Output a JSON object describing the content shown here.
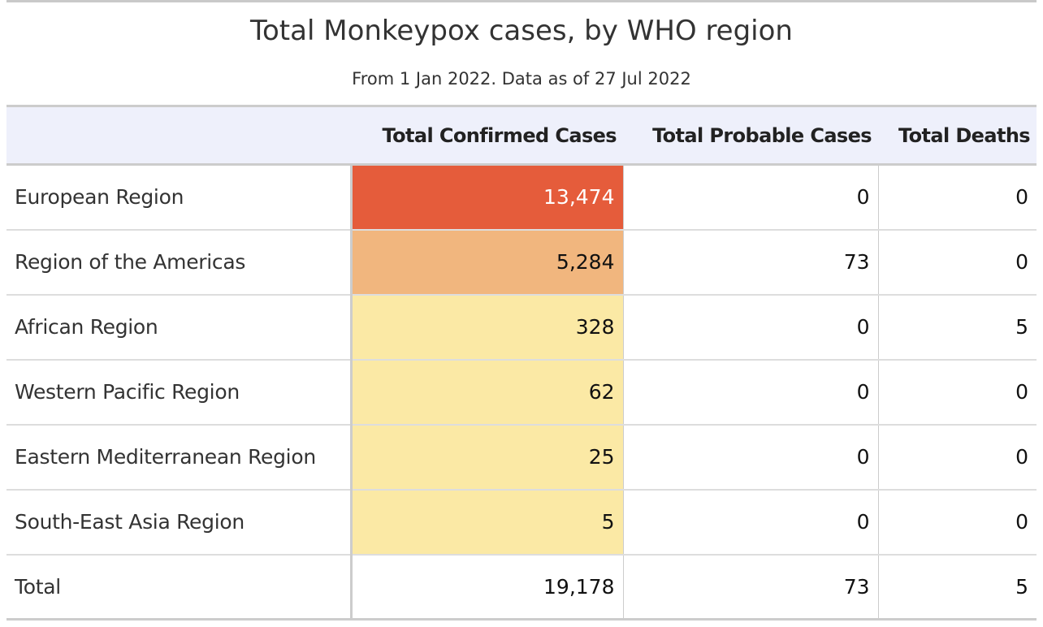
{
  "title": "Total Monkeypox cases, by WHO region",
  "subtitle": "From 1 Jan 2022. Data as of 27 Jul 2022",
  "chart_data": {
    "type": "table",
    "title": "Total Monkeypox cases, by WHO region",
    "subtitle": "From 1 Jan 2022. Data as of 27 Jul 2022",
    "columns": [
      "",
      "Total Confirmed Cases",
      "Total Probable Cases",
      "Total Deaths"
    ],
    "rows": [
      {
        "region": "European Region",
        "confirmed": "13,474",
        "probable": "0",
        "deaths": "0",
        "confirmed_value": 13474,
        "heat_color": "#e55c3b",
        "text_color": "#ffffff"
      },
      {
        "region": "Region of the Americas",
        "confirmed": "5,284",
        "probable": "73",
        "deaths": "0",
        "confirmed_value": 5284,
        "heat_color": "#f1b67e",
        "text_color": "#111111"
      },
      {
        "region": "African Region",
        "confirmed": "328",
        "probable": "0",
        "deaths": "5",
        "confirmed_value": 328,
        "heat_color": "#fbe9a5",
        "text_color": "#111111"
      },
      {
        "region": "Western Pacific Region",
        "confirmed": "62",
        "probable": "0",
        "deaths": "0",
        "confirmed_value": 62,
        "heat_color": "#fbe9a5",
        "text_color": "#111111"
      },
      {
        "region": "Eastern Mediterranean Region",
        "confirmed": "25",
        "probable": "0",
        "deaths": "0",
        "confirmed_value": 25,
        "heat_color": "#fbe9a5",
        "text_color": "#111111"
      },
      {
        "region": "South-East Asia Region",
        "confirmed": "5",
        "probable": "0",
        "deaths": "0",
        "confirmed_value": 5,
        "heat_color": "#fbe9a5",
        "text_color": "#111111"
      }
    ],
    "total": {
      "label": "Total",
      "confirmed": "19,178",
      "probable": "73",
      "deaths": "5"
    }
  }
}
